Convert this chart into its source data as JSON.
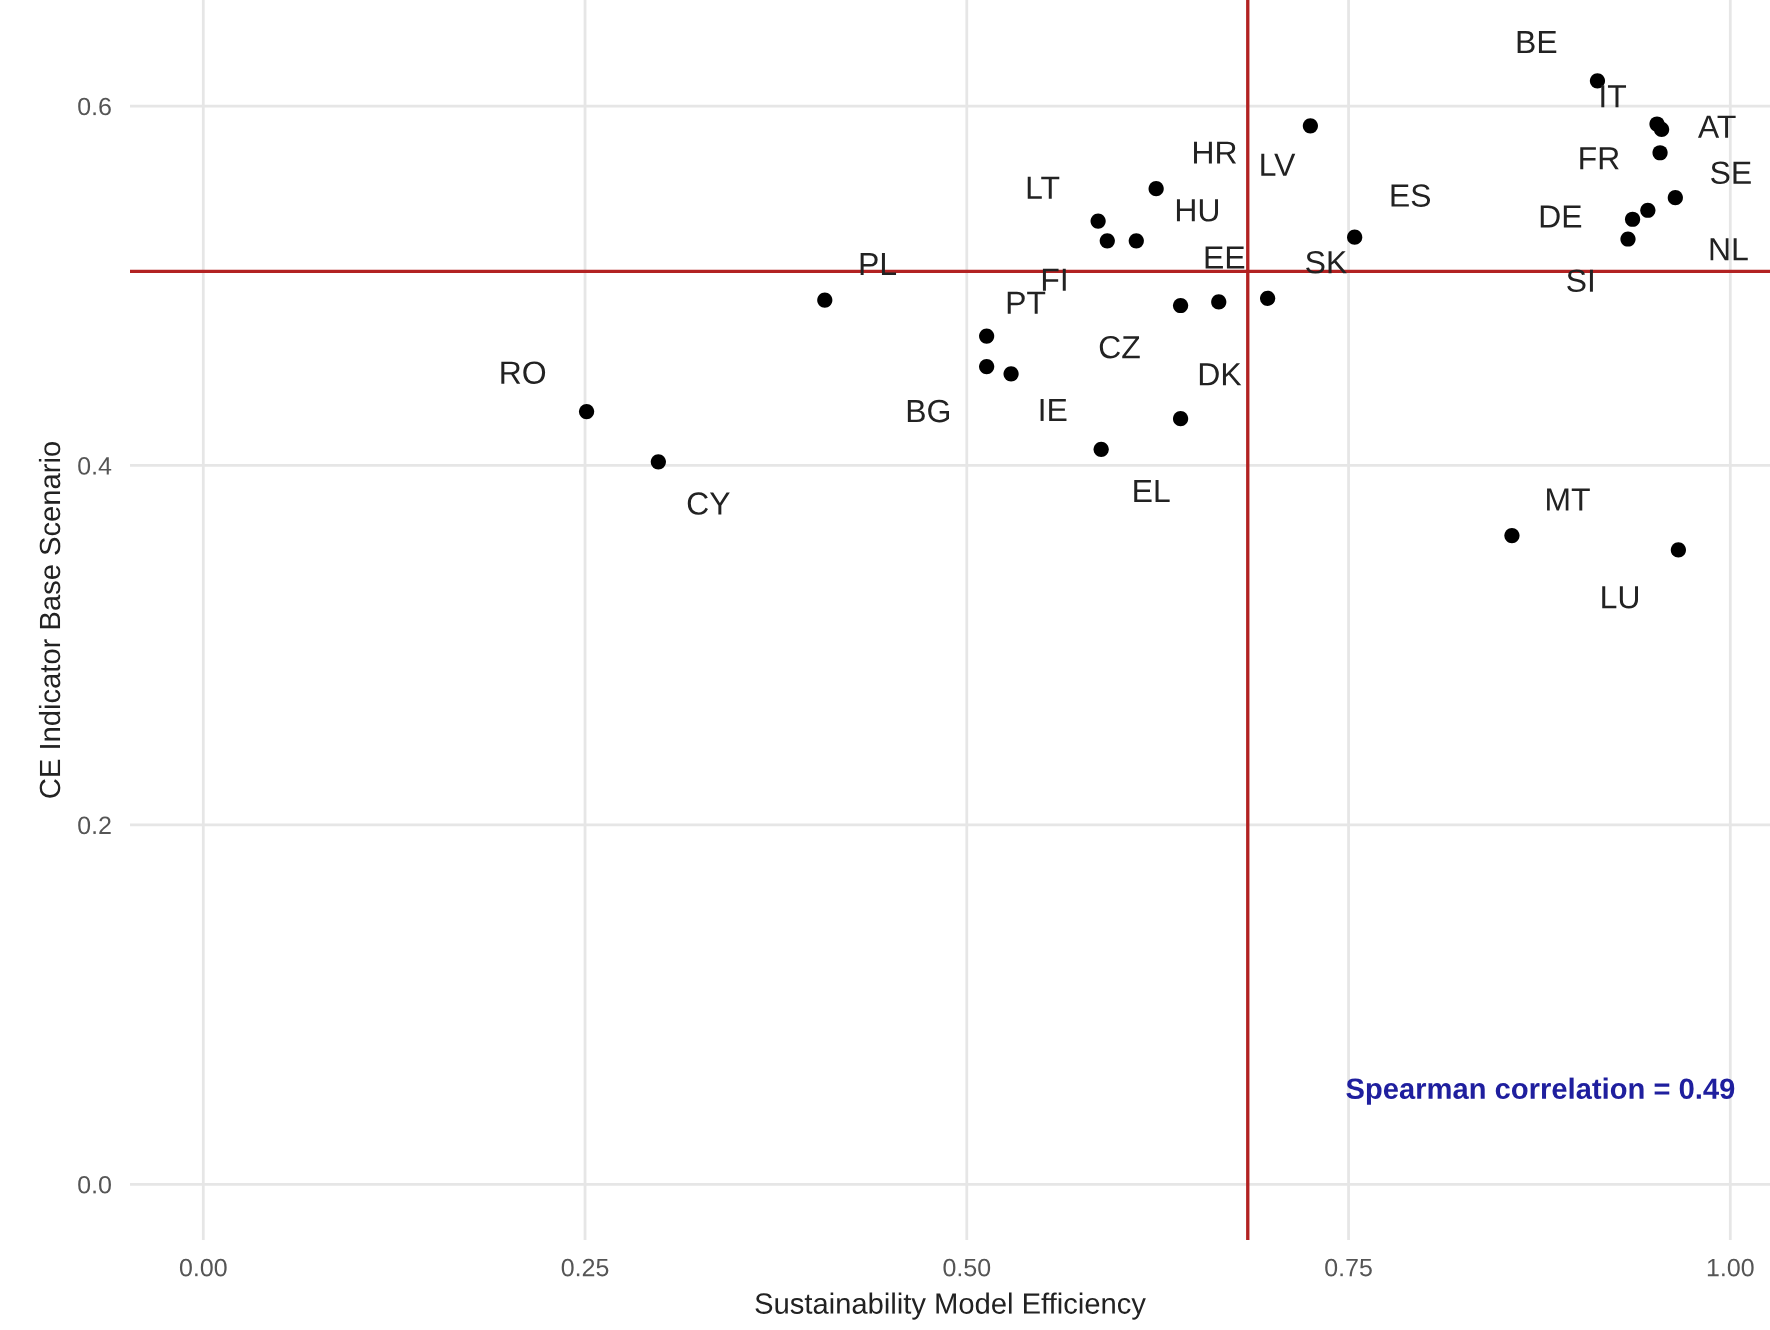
{
  "chart_data": {
    "type": "scatter",
    "xlabel": "Sustainability Model Efficiency",
    "ylabel": "CE Indicator Base Scenario",
    "series": [
      {
        "color": "#000000",
        "x": [
          0.251,
          0.298,
          0.407,
          0.513,
          0.513,
          0.529,
          0.586,
          0.592,
          0.588,
          0.611,
          0.624,
          0.725,
          0.754,
          0.64,
          0.665,
          0.697,
          0.64,
          0.857,
          0.966,
          0.913,
          0.952,
          0.955,
          0.954,
          0.964,
          0.936,
          0.946,
          0.933
        ],
        "values": [
          0.43,
          0.402,
          0.492,
          0.472,
          0.455,
          0.451,
          0.536,
          0.525,
          0.409,
          0.525,
          0.554,
          0.589,
          0.527,
          0.489,
          0.491,
          0.493,
          0.426,
          0.361,
          0.353,
          0.614,
          0.59,
          0.587,
          0.574,
          0.549,
          0.537,
          0.542,
          0.526
        ]
      }
    ],
    "xlim": [
      -0.048,
      1.026
    ],
    "ylim": [
      -0.031,
      0.659
    ],
    "xticks": [
      {
        "value": 0,
        "label": "0.00"
      },
      {
        "value": 0.25,
        "label": "0.25"
      },
      {
        "value": 0.5,
        "label": "0.50"
      },
      {
        "value": 0.75,
        "label": "0.75"
      },
      {
        "value": 1,
        "label": "1.00"
      }
    ],
    "yticks": [
      {
        "value": 0,
        "label": "0.0"
      },
      {
        "value": 0.2,
        "label": "0.2"
      },
      {
        "value": 0.4,
        "label": "0.4"
      },
      {
        "value": 0.6,
        "label": "0.6"
      }
    ],
    "ref_lines": [
      {
        "axis": "x",
        "value": 0.684,
        "color": "#b22222"
      },
      {
        "axis": "y",
        "value": 0.508,
        "color": "#b22222"
      }
    ],
    "annotations": [
      {
        "text": "RO",
        "x": 0.251,
        "y": 0.43
      },
      {
        "text": "CY",
        "x": 0.298,
        "y": 0.402
      },
      {
        "text": "PL",
        "x": 0.407,
        "y": 0.492
      },
      {
        "text": "PT",
        "x": 0.513,
        "y": 0.472
      },
      {
        "text": "BG",
        "x": 0.513,
        "y": 0.455
      },
      {
        "text": "IE",
        "x": 0.529,
        "y": 0.451
      },
      {
        "text": "LT",
        "x": 0.586,
        "y": 0.536
      },
      {
        "text": "FI",
        "x": 0.592,
        "y": 0.525
      },
      {
        "text": "EL",
        "x": 0.588,
        "y": 0.409
      },
      {
        "text": "HU",
        "x": 0.611,
        "y": 0.525
      },
      {
        "text": "HR",
        "x": 0.624,
        "y": 0.554
      },
      {
        "text": "LV",
        "x": 0.725,
        "y": 0.589
      },
      {
        "text": "ES",
        "x": 0.754,
        "y": 0.527
      },
      {
        "text": "CZ",
        "x": 0.64,
        "y": 0.489
      },
      {
        "text": "EE",
        "x": 0.665,
        "y": 0.491
      },
      {
        "text": "SK",
        "x": 0.697,
        "y": 0.493
      },
      {
        "text": "DK",
        "x": 0.64,
        "y": 0.426
      },
      {
        "text": "MT",
        "x": 0.857,
        "y": 0.361
      },
      {
        "text": "LU",
        "x": 0.966,
        "y": 0.353
      },
      {
        "text": "BE",
        "x": 0.913,
        "y": 0.614
      },
      {
        "text": "IT",
        "x": 0.952,
        "y": 0.59
      },
      {
        "text": "AT",
        "x": 0.955,
        "y": 0.587
      },
      {
        "text": "FR",
        "x": 0.954,
        "y": 0.574
      },
      {
        "text": "SE",
        "x": 0.964,
        "y": 0.549
      },
      {
        "text": "DE",
        "x": 0.936,
        "y": 0.537
      },
      {
        "text": "NL",
        "x": 0.946,
        "y": 0.542
      },
      {
        "text": "SI",
        "x": 0.933,
        "y": 0.526
      },
      "Spearman correlation = 0.49"
    ],
    "grid": true,
    "marker": "circle"
  }
}
